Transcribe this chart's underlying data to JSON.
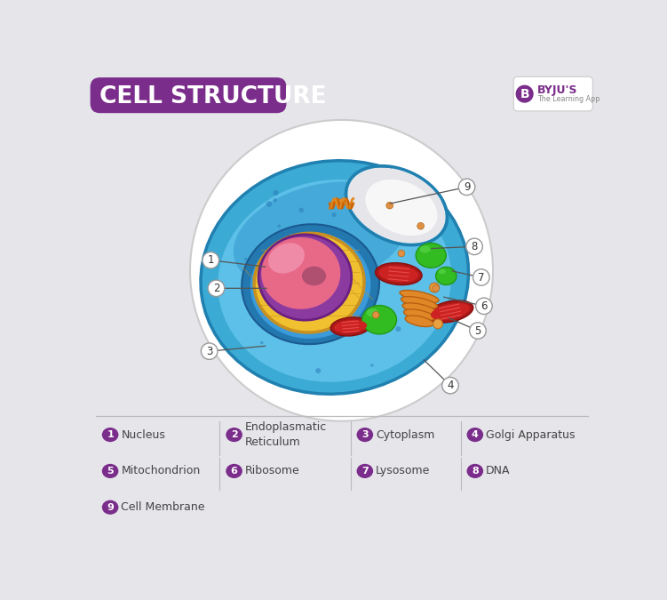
{
  "title": "CELL STRUCTURE",
  "title_bg_color": "#7B2D8B",
  "title_text_color": "#FFFFFF",
  "bg_color": "#E5E5EA",
  "legend_items": [
    {
      "num": "1",
      "label": "Nucleus"
    },
    {
      "num": "2",
      "label": "Endoplasmatic\nReticulum"
    },
    {
      "num": "3",
      "label": "Cytoplasm"
    },
    {
      "num": "4",
      "label": "Golgi Apparatus"
    },
    {
      "num": "5",
      "label": "Mitochondrion"
    },
    {
      "num": "6",
      "label": "Ribosome"
    },
    {
      "num": "7",
      "label": "Lysosome"
    },
    {
      "num": "8",
      "label": "DNA"
    },
    {
      "num": "9",
      "label": "Cell Membrane"
    }
  ],
  "legend_circle_color": "#7B2D8B",
  "legend_text_color": "#444444",
  "divider_color": "#BBBBBB",
  "byju_purple": "#7B2D8B"
}
